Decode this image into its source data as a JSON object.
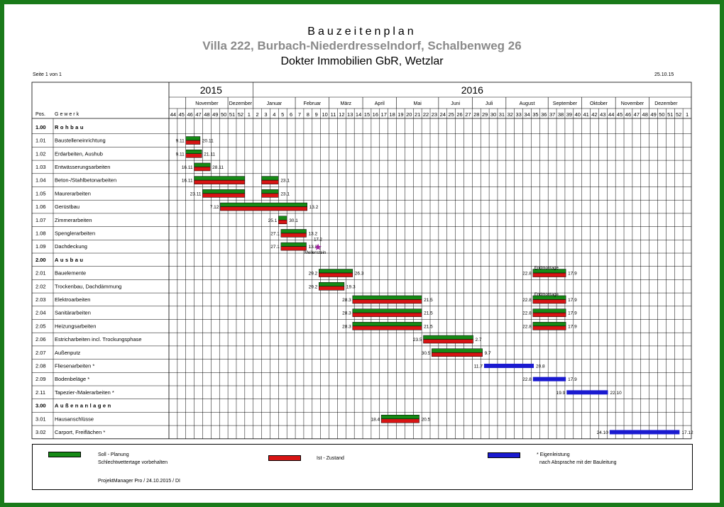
{
  "header": {
    "title": "Bauzeitenplan",
    "project": "Villa 222, Burbach-Niederdresselndorf, Schalbenweg 26",
    "client": "Dokter Immobilien GbR, Wetzlar",
    "page_label": "Seite 1 von 1",
    "print_date": "25.10.15"
  },
  "chart_data": {
    "type": "gantt",
    "years": [
      {
        "label": "2015",
        "first_col": 0,
        "span": 10
      },
      {
        "label": "2016",
        "first_col": 10,
        "span": 52
      }
    ],
    "months": [
      {
        "label": "November",
        "first_col": 2,
        "span": 5
      },
      {
        "label": "Dezember",
        "first_col": 7,
        "span": 3
      },
      {
        "label": "Januar",
        "first_col": 10,
        "span": 5
      },
      {
        "label": "Februar",
        "first_col": 15,
        "span": 4
      },
      {
        "label": "März",
        "first_col": 19,
        "span": 4
      },
      {
        "label": "April",
        "first_col": 23,
        "span": 4
      },
      {
        "label": "Mai",
        "first_col": 27,
        "span": 5
      },
      {
        "label": "Juni",
        "first_col": 32,
        "span": 4
      },
      {
        "label": "Juli",
        "first_col": 36,
        "span": 4
      },
      {
        "label": "August",
        "first_col": 40,
        "span": 5
      },
      {
        "label": "September",
        "first_col": 45,
        "span": 4
      },
      {
        "label": "Oktober",
        "first_col": 49,
        "span": 4
      },
      {
        "label": "November",
        "first_col": 53,
        "span": 4
      },
      {
        "label": "Dezember",
        "first_col": 57,
        "span": 4
      }
    ],
    "weeks": [
      "44",
      "45",
      "46",
      "47",
      "48",
      "49",
      "50",
      "51",
      "52",
      "1",
      "2",
      "3",
      "4",
      "5",
      "6",
      "7",
      "8",
      "9",
      "10",
      "11",
      "12",
      "13",
      "14",
      "15",
      "16",
      "17",
      "18",
      "19",
      "20",
      "21",
      "22",
      "23",
      "24",
      "25",
      "26",
      "27",
      "28",
      "29",
      "30",
      "31",
      "32",
      "33",
      "34",
      "35",
      "36",
      "37",
      "38",
      "39",
      "40",
      "41",
      "42",
      "43",
      "44",
      "45",
      "46",
      "47",
      "48",
      "49",
      "50",
      "51",
      "52",
      "1"
    ],
    "col_header_pos": "Pos.",
    "col_header_task": "Gewerk",
    "rows": [
      {
        "pos": "1.00",
        "name": "Rohbau",
        "section": true
      },
      {
        "pos": "1.01",
        "name": "Baustelleneinrichtung",
        "plan": [
          2.0,
          3.7
        ],
        "actual": [
          2.0,
          3.7
        ],
        "start_label": "9.11",
        "end_label": "20.11"
      },
      {
        "pos": "1.02",
        "name": "Erdarbeiten, Aushub",
        "plan": [
          2.0,
          3.9
        ],
        "actual": [
          2.0,
          3.9
        ],
        "start_label": "9.11",
        "end_label": "21.11"
      },
      {
        "pos": "1.03",
        "name": "Entwässerungsarbeiten",
        "plan": [
          3.0,
          4.9
        ],
        "actual": [
          3.0,
          4.9
        ],
        "start_label": "16.11",
        "end_label": "28.11"
      },
      {
        "pos": "1.04",
        "name": "Beton-/Stahlbetonarbeiten",
        "plan": [
          3.0,
          9.0
        ],
        "actual": [
          3.0,
          9.0
        ],
        "plan2": [
          11.0,
          13.0
        ],
        "actual2": [
          11.0,
          13.0
        ],
        "start_label": "16.11",
        "end_label": "23.1"
      },
      {
        "pos": "1.05",
        "name": "Maurerarbeiten",
        "plan": [
          4.0,
          9.0
        ],
        "actual": [
          4.0,
          9.0
        ],
        "plan2": [
          11.0,
          13.0
        ],
        "actual2": [
          11.0,
          13.0
        ],
        "start_label": "23.11",
        "end_label": "23.1"
      },
      {
        "pos": "1.06",
        "name": "Gerüstbau",
        "plan": [
          6.1,
          16.4
        ],
        "actual": [
          6.1,
          16.4
        ],
        "start_label": "7.12",
        "end_label": "13.2"
      },
      {
        "pos": "1.07",
        "name": "Zimmerarbeiten",
        "plan": [
          13.0,
          14.0
        ],
        "actual": [
          13.0,
          14.0
        ],
        "start_label": "25.1",
        "end_label": "30.1"
      },
      {
        "pos": "1.08",
        "name": "Spenglerarbeiten",
        "plan": [
          13.3,
          16.3
        ],
        "actual": [
          13.3,
          16.3
        ],
        "start_label": "27.1",
        "end_label": "13.2"
      },
      {
        "pos": "1.09",
        "name": "Dachdeckung",
        "plan": [
          13.3,
          16.3
        ],
        "actual": [
          13.3,
          16.3
        ],
        "start_label": "27.1",
        "end_label": "13.2",
        "milestone": 17.7,
        "milestone_date": "17.2",
        "milestone_label": "Meilenstein"
      },
      {
        "pos": "2.00",
        "name": "Ausbau",
        "section": true
      },
      {
        "pos": "2.01",
        "name": "Bauelemente",
        "plan": [
          17.8,
          21.8
        ],
        "actual": [
          17.8,
          21.8
        ],
        "plan2": [
          43.2,
          47.1
        ],
        "actual2": [
          43.2,
          47.1
        ],
        "start_label": "29.2",
        "end_label": "26.3",
        "start2_label": "22.8",
        "end2_label": "17.9",
        "note": "Endmontage"
      },
      {
        "pos": "2.02",
        "name": "Trockenbau, Dachdämmung",
        "plan": [
          17.8,
          20.8
        ],
        "actual": [
          17.8,
          20.8
        ],
        "start_label": "29.2",
        "end_label": "19.3"
      },
      {
        "pos": "2.03",
        "name": "Elektroarbeiten",
        "plan": [
          21.8,
          30.0
        ],
        "actual": [
          21.8,
          30.0
        ],
        "plan2": [
          43.2,
          47.1
        ],
        "actual2": [
          43.2,
          47.1
        ],
        "start_label": "28.3",
        "end_label": "21.5",
        "start2_label": "22.8",
        "end2_label": "17.9",
        "note": "Endmontage"
      },
      {
        "pos": "2.04",
        "name": "Sanitärarbeiten",
        "plan": [
          21.8,
          30.0
        ],
        "actual": [
          21.8,
          30.0
        ],
        "plan2": [
          43.2,
          47.1
        ],
        "actual2": [
          43.2,
          47.1
        ],
        "start_label": "28.3",
        "end_label": "21.5",
        "start2_label": "22.8",
        "end2_label": "17.9"
      },
      {
        "pos": "2.05",
        "name": "Heizungsarbeiten",
        "plan": [
          21.8,
          30.0
        ],
        "actual": [
          21.8,
          30.0
        ],
        "plan2": [
          43.2,
          47.1
        ],
        "actual2": [
          43.2,
          47.1
        ],
        "start_label": "28.3",
        "end_label": "21.5",
        "start2_label": "22.8",
        "end2_label": "17.9"
      },
      {
        "pos": "2.06",
        "name": "Estricharbeiten incl. Trockungsphase",
        "plan": [
          30.2,
          36.1
        ],
        "actual": [
          30.2,
          36.1
        ],
        "start_label": "23.5",
        "end_label": "2.7"
      },
      {
        "pos": "2.07",
        "name": "Außenputz",
        "plan": [
          31.2,
          37.2
        ],
        "actual": [
          31.2,
          37.2
        ],
        "start_label": "30.5",
        "end_label": "9.7"
      },
      {
        "pos": "2.08",
        "name": "Fliesenarbeiten *",
        "own": [
          37.4,
          43.3
        ],
        "start_label": "11.7",
        "end_label": "20.8"
      },
      {
        "pos": "2.09",
        "name": "Bodenbeläge *",
        "own": [
          43.2,
          47.1
        ],
        "start_label": "22.8",
        "end_label": "17.9"
      },
      {
        "pos": "2.11",
        "name": "Tapezier-/Malerarbeiten *",
        "own": [
          47.2,
          52.1
        ],
        "start_label": "19.9",
        "end_label": "22.10"
      },
      {
        "pos": "3.00",
        "name": "Außenanlagen",
        "section": true
      },
      {
        "pos": "3.01",
        "name": "Hausanschlüsse",
        "plan": [
          25.2,
          29.7
        ],
        "actual": [
          25.2,
          29.7
        ],
        "start_label": "18.4",
        "end_label": "20.5"
      },
      {
        "pos": "3.02",
        "name": "Carport, Freiflächen *",
        "own": [
          52.3,
          60.6
        ],
        "start_label": "24.10",
        "end_label": "17.12"
      }
    ]
  },
  "legend": {
    "plan_label": "Soll - Planung",
    "plan_sub": "Schlechtwettertage vorbehalten",
    "actual_label": "Ist - Zustand",
    "own_label": "* Eigenleistung",
    "own_sub": "nach Absprache mit der Bauleitung",
    "footer": "ProjektManager Pro / 24.10.2015 / DI",
    "plan_color": "#168a16",
    "actual_color": "#d81414",
    "own_color": "#1a1ad0"
  }
}
